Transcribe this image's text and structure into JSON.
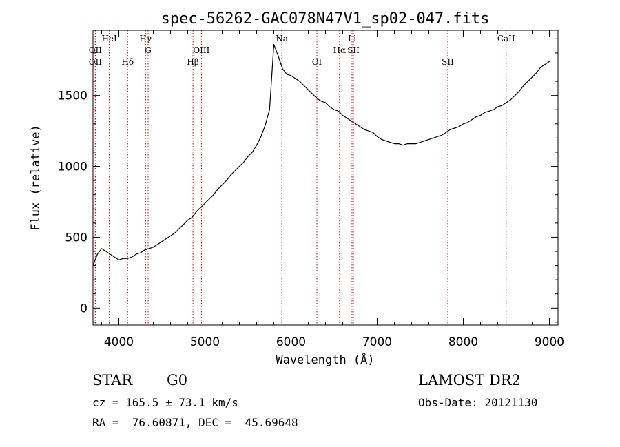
{
  "chart_data": {
    "type": "line",
    "title": "spec-56262-GAC078N47V1_sp02-047.fits",
    "xlabel": "Wavelength (Å)",
    "ylabel": "Flux (relative)",
    "xlim": [
      3700,
      9100
    ],
    "ylim": [
      -120,
      1960
    ],
    "xticks": [
      4000,
      5000,
      6000,
      7000,
      8000,
      9000
    ],
    "yticks": [
      0,
      500,
      1000,
      1500
    ],
    "grid": false,
    "line_color": "#000000",
    "marker_color": "#cc0000",
    "series": [
      {
        "x": [
          3700,
          3750,
          3800,
          3850,
          3900,
          3950,
          4000,
          4050,
          4100,
          4150,
          4200,
          4250,
          4300,
          4350,
          4400,
          4450,
          4500,
          4550,
          4600,
          4650,
          4700,
          4750,
          4800,
          4850,
          4900,
          4950,
          5000,
          5050,
          5100,
          5150,
          5200,
          5250,
          5300,
          5350,
          5400,
          5450,
          5500,
          5550,
          5600,
          5650,
          5700,
          5750,
          5800,
          5850,
          5900,
          5950,
          6000,
          6050,
          6100,
          6150,
          6200,
          6250,
          6300,
          6350,
          6400,
          6450,
          6500,
          6550,
          6600,
          6650,
          6700,
          6750,
          6800,
          6850,
          6900,
          6950,
          7000,
          7050,
          7100,
          7150,
          7200,
          7250,
          7300,
          7350,
          7400,
          7450,
          7500,
          7550,
          7600,
          7650,
          7700,
          7750,
          7800,
          7850,
          7900,
          7950,
          8000,
          8050,
          8100,
          8150,
          8200,
          8250,
          8300,
          8350,
          8400,
          8450,
          8500,
          8550,
          8600,
          8650,
          8700,
          8750,
          8800,
          8850,
          8900,
          8950,
          9000
        ],
        "y": [
          300,
          380,
          420,
          400,
          380,
          360,
          340,
          350,
          350,
          360,
          380,
          390,
          410,
          420,
          430,
          450,
          470,
          490,
          510,
          530,
          560,
          590,
          620,
          640,
          680,
          710,
          740,
          770,
          800,
          840,
          870,
          900,
          940,
          970,
          1000,
          1030,
          1070,
          1100,
          1150,
          1210,
          1290,
          1400,
          1860,
          1780,
          1690,
          1650,
          1640,
          1620,
          1600,
          1570,
          1540,
          1510,
          1480,
          1460,
          1450,
          1420,
          1400,
          1390,
          1360,
          1340,
          1320,
          1300,
          1280,
          1260,
          1250,
          1240,
          1210,
          1190,
          1180,
          1170,
          1160,
          1160,
          1150,
          1160,
          1160,
          1160,
          1170,
          1180,
          1190,
          1200,
          1210,
          1220,
          1240,
          1260,
          1270,
          1280,
          1300,
          1310,
          1330,
          1350,
          1360,
          1380,
          1390,
          1400,
          1420,
          1430,
          1450,
          1470,
          1500,
          1530,
          1570,
          1600,
          1630,
          1660,
          1700,
          1720,
          1740
        ]
      }
    ],
    "lines": [
      {
        "name": "OII",
        "x": 3727,
        "tier": 2
      },
      {
        "name": "OII",
        "x": 3727,
        "tier": 3
      },
      {
        "name": "HeI",
        "x": 3889,
        "tier": 1
      },
      {
        "name": "Hδ",
        "x": 4102,
        "tier": 3
      },
      {
        "name": "Hγ",
        "x": 4310,
        "tier": 1
      },
      {
        "name": "G",
        "x": 4340,
        "tier": 2
      },
      {
        "name": "OIII",
        "x": 4959,
        "tier": 2
      },
      {
        "name": "Hβ",
        "x": 4861,
        "tier": 3
      },
      {
        "name": "Na",
        "x": 5893,
        "tier": 1
      },
      {
        "name": "OI",
        "x": 6300,
        "tier": 3
      },
      {
        "name": "Li",
        "x": 6708,
        "tier": 1
      },
      {
        "name": "Hα",
        "x": 6563,
        "tier": 2
      },
      {
        "name": "SII",
        "x": 6724,
        "tier": 2
      },
      {
        "name": "SII",
        "x": 7820,
        "tier": 3
      },
      {
        "name": "CaII",
        "x": 8498,
        "tier": 1
      }
    ]
  },
  "info": {
    "object_type": "STAR",
    "subclass": "G0",
    "survey": "LAMOST DR2",
    "cz": "cz = 165.5 ± 73.1 km/s",
    "obs_date": "Obs-Date: 20121130",
    "coords": "RA =  76.60871, DEC =  45.69648"
  }
}
